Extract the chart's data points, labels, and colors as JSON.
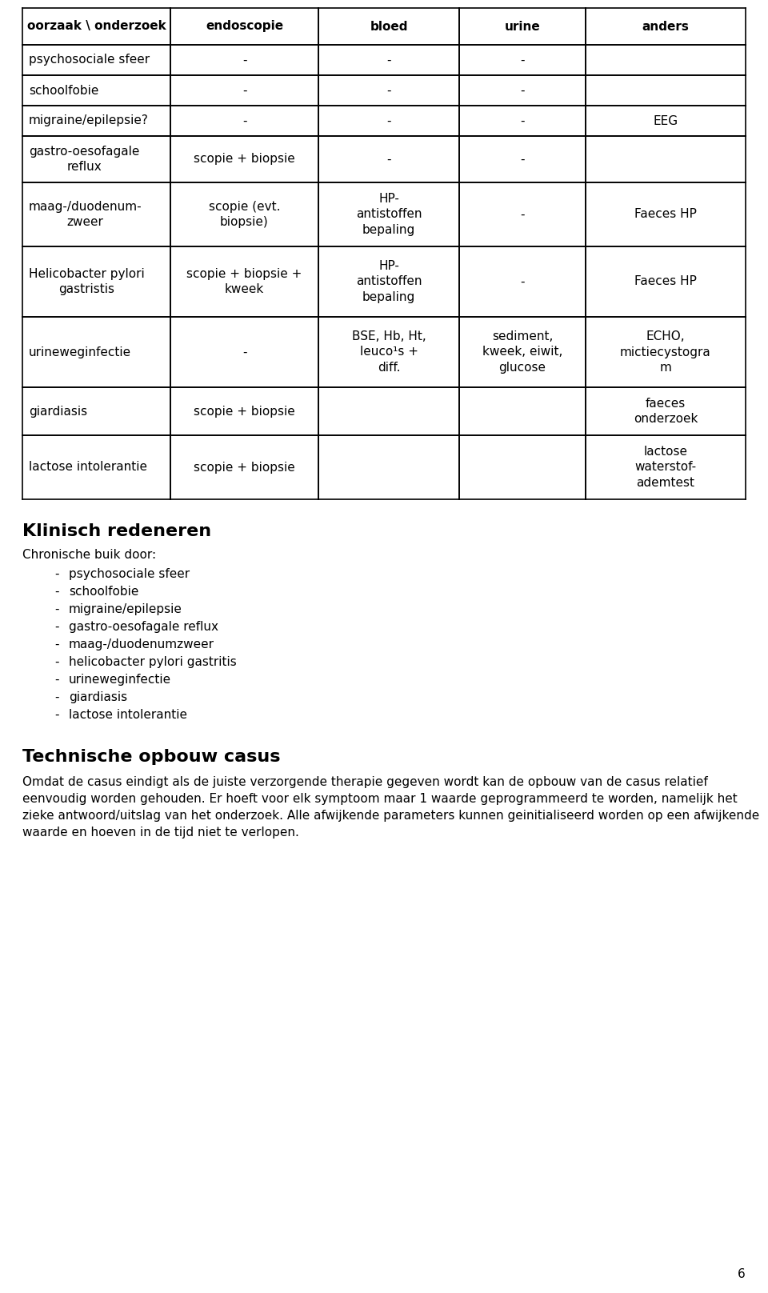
{
  "bg_color": "#ffffff",
  "text_color": "#000000",
  "table": {
    "headers": [
      "oorzaak \\ onderzoek",
      "endoscopie",
      "bloed",
      "urine",
      "anders"
    ],
    "rows": [
      [
        "psychosociale sfeer",
        "-",
        "-",
        "-",
        ""
      ],
      [
        "schoolfobie",
        "-",
        "-",
        "-",
        ""
      ],
      [
        "migraine/epilepsie?",
        "-",
        "-",
        "-",
        "EEG"
      ],
      [
        "gastro-oesofagale\nreflux",
        "scopie + biopsie",
        "-",
        "-",
        ""
      ],
      [
        "maag-/duodenum-\nzweer",
        "scopie (evt.\nbiopsie)",
        "HP-\nantistoffen\nbepaling",
        "-",
        "Faeces HP"
      ],
      [
        "Helicobacter pylori\ngastristis",
        "scopie + biopsie +\nkweek",
        "HP-\nantistoffen\nbepaling",
        "-",
        "Faeces HP"
      ],
      [
        "urineweginfectie",
        "-",
        "BSE, Hb, Ht,\nleuco¹s +\ndiff.",
        "sediment,\nkweek, eiwit,\nglucose",
        "ECHO,\nmictiecystogra\nm"
      ],
      [
        "giardiasis",
        "scopie + biopsie",
        "",
        "",
        "faeces\nonderzoek"
      ],
      [
        "lactose intolerantie",
        "scopie + biopsie",
        "",
        "",
        "lactose\nwaterstof-\nademtest"
      ]
    ]
  },
  "section2_title": "Klinisch redeneren",
  "section2_subtitle": "Chronische buik door:",
  "section2_items": [
    "psychosociale sfeer",
    "schoolfobie",
    "migraine/epilepsie",
    "gastro-oesofagale reflux",
    "maag-/duodenumzweer",
    "helicobacter pylori gastritis",
    "urineweginfectie",
    "giardiasis",
    "lactose intolerantie"
  ],
  "section3_title": "Technische opbouw casus",
  "section3_body": "Omdat de casus eindigt als de juiste verzorgende therapie gegeven wordt kan de opbouw van de casus relatief eenvoudig worden gehouden. Er hoeft voor elk symptoom maar 1 waarde geprogrammeerd te worden, namelijk het zieke antwoord/uitslag van het onderzoek. Alle afwijkende parameters kunnen geinitialiseerd worden op een afwijkende waarde en hoeven in de tijd niet te verlopen.",
  "page_number": "6"
}
